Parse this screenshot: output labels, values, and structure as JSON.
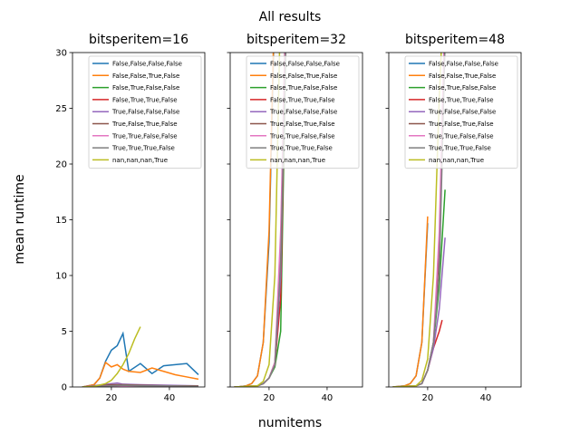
{
  "title": "All results",
  "xlabel": "numitems",
  "ylabel": "mean runtime",
  "chart_data": [
    {
      "type": "line",
      "title": "bitsperitem=16",
      "xlim": [
        6.6,
        52.2
      ],
      "ylim": [
        0,
        30
      ],
      "xticks": [
        20,
        40
      ],
      "yticks": [
        0,
        5,
        10,
        15,
        20,
        25,
        30
      ],
      "legend": "upper right",
      "series": [
        {
          "name": "False,False,False,False",
          "color": "#1f77b4",
          "x": [
            10,
            14,
            16,
            18,
            20,
            22,
            24,
            26,
            30,
            34,
            38,
            42,
            46,
            50
          ],
          "values": [
            0,
            0.2,
            0.8,
            2.3,
            3.3,
            3.7,
            4.8,
            1.4,
            2.1,
            1.2,
            1.9,
            2.0,
            2.1,
            1.1
          ]
        },
        {
          "name": "False,False,True,False",
          "color": "#ff7f0e",
          "x": [
            10,
            14,
            16,
            18,
            20,
            22,
            24,
            26,
            30,
            34,
            38,
            42,
            46,
            50
          ],
          "values": [
            0,
            0.2,
            0.8,
            2.2,
            1.8,
            2.0,
            1.6,
            1.4,
            1.3,
            1.7,
            1.4,
            1.1,
            0.9,
            0.7
          ]
        },
        {
          "name": "False,True,False,False",
          "color": "#2ca02c",
          "x": [
            10,
            20,
            24,
            30,
            40,
            50
          ],
          "values": [
            0,
            0.1,
            0.15,
            0.1,
            0.1,
            0.05
          ]
        },
        {
          "name": "False,True,True,False",
          "color": "#d62728",
          "x": [
            10,
            20,
            24,
            30,
            40,
            50
          ],
          "values": [
            0,
            0.15,
            0.2,
            0.15,
            0.1,
            0.1
          ]
        },
        {
          "name": "True,False,False,False",
          "color": "#9467bd",
          "x": [
            10,
            20,
            22,
            24,
            30,
            40,
            50
          ],
          "values": [
            0,
            0.3,
            0.35,
            0.25,
            0.2,
            0.15,
            0.1
          ]
        },
        {
          "name": "True,False,True,False",
          "color": "#8c564b",
          "x": [
            10,
            20,
            24,
            30,
            40,
            50
          ],
          "values": [
            0,
            0.2,
            0.2,
            0.15,
            0.1,
            0.1
          ]
        },
        {
          "name": "True,True,False,False",
          "color": "#e377c2",
          "x": [
            10,
            20,
            24,
            30,
            40,
            50
          ],
          "values": [
            0,
            0.1,
            0.1,
            0.1,
            0.05,
            0.05
          ]
        },
        {
          "name": "True,True,True,False",
          "color": "#7f7f7f",
          "x": [
            10,
            20,
            24,
            30,
            40,
            50
          ],
          "values": [
            0,
            0.1,
            0.15,
            0.1,
            0.1,
            0.05
          ]
        },
        {
          "name": "nan,nan,nan,True",
          "color": "#bcbd22",
          "x": [
            10,
            14,
            18,
            20,
            22,
            24,
            26,
            28,
            30
          ],
          "values": [
            0,
            0.05,
            0.3,
            0.6,
            1.2,
            2.0,
            3.0,
            4.3,
            5.4
          ]
        }
      ]
    },
    {
      "type": "line",
      "title": "bitsperitem=32",
      "xlim": [
        6.6,
        52.2
      ],
      "ylim": [
        0,
        30
      ],
      "xticks": [
        20,
        40
      ],
      "yticks": [
        0,
        5,
        10,
        15,
        20,
        25,
        30
      ],
      "legend": "upper right",
      "series": [
        {
          "name": "False,False,False,False",
          "color": "#1f77b4",
          "x": [
            8,
            10,
            12,
            14,
            16,
            18,
            20,
            22
          ],
          "values": [
            0,
            0.02,
            0.1,
            0.3,
            1.0,
            4.0,
            13,
            35
          ]
        },
        {
          "name": "False,False,True,False",
          "color": "#ff7f0e",
          "x": [
            8,
            10,
            12,
            14,
            16,
            18,
            20,
            22
          ],
          "values": [
            0,
            0.02,
            0.1,
            0.3,
            1.0,
            4.0,
            14,
            36
          ]
        },
        {
          "name": "False,True,False,False",
          "color": "#2ca02c",
          "x": [
            8,
            12,
            16,
            18,
            20,
            22,
            24,
            26
          ],
          "values": [
            0,
            0.05,
            0.1,
            0.3,
            0.8,
            1.8,
            5,
            34
          ]
        },
        {
          "name": "False,True,True,False",
          "color": "#d62728",
          "x": [
            8,
            12,
            16,
            18,
            20,
            22,
            24,
            26
          ],
          "values": [
            0,
            0.05,
            0.1,
            0.3,
            0.8,
            2,
            8,
            35
          ]
        },
        {
          "name": "True,False,False,False",
          "color": "#9467bd",
          "x": [
            8,
            12,
            16,
            18,
            20,
            22,
            24,
            26
          ],
          "values": [
            0,
            0.05,
            0.1,
            0.3,
            0.8,
            2,
            10,
            36
          ]
        },
        {
          "name": "True,False,True,False",
          "color": "#8c564b",
          "x": [
            8,
            12,
            16,
            18,
            20,
            22,
            24,
            26
          ],
          "values": [
            0,
            0.05,
            0.1,
            0.3,
            0.8,
            2.2,
            12,
            38
          ]
        },
        {
          "name": "True,True,False,False",
          "color": "#e377c2",
          "x": [
            8,
            12,
            16,
            18,
            20,
            22,
            24,
            26
          ],
          "values": [
            0,
            0.05,
            0.1,
            0.3,
            0.8,
            2.2,
            14,
            36
          ]
        },
        {
          "name": "True,True,True,False",
          "color": "#7f7f7f",
          "x": [
            8,
            12,
            16,
            18,
            20,
            22,
            24,
            26
          ],
          "values": [
            0,
            0.05,
            0.1,
            0.3,
            0.8,
            2,
            11,
            33
          ]
        },
        {
          "name": "nan,nan,nan,True",
          "color": "#bcbd22",
          "x": [
            8,
            12,
            16,
            18,
            20,
            22,
            24
          ],
          "values": [
            0,
            0.05,
            0.1,
            0.5,
            2,
            10,
            35
          ]
        }
      ]
    },
    {
      "type": "line",
      "title": "bitsperitem=48",
      "xlim": [
        6.6,
        52.2
      ],
      "ylim": [
        0,
        30
      ],
      "xticks": [
        20,
        40
      ],
      "yticks": [
        0,
        5,
        10,
        15,
        20,
        25,
        30
      ],
      "legend": "upper right",
      "series": [
        {
          "name": "False,False,False,False",
          "color": "#1f77b4",
          "x": [
            8,
            12,
            14,
            16,
            18,
            20
          ],
          "values": [
            0,
            0.1,
            0.3,
            1.0,
            4.0,
            14.7
          ]
        },
        {
          "name": "False,False,True,False",
          "color": "#ff7f0e",
          "x": [
            8,
            12,
            14,
            16,
            18,
            20
          ],
          "values": [
            0,
            0.1,
            0.3,
            1.0,
            4.0,
            15.3
          ]
        },
        {
          "name": "False,True,False,False",
          "color": "#2ca02c",
          "x": [
            8,
            12,
            16,
            18,
            20,
            22,
            24,
            26
          ],
          "values": [
            0,
            0.05,
            0.1,
            0.3,
            1.5,
            4,
            9,
            17.7
          ]
        },
        {
          "name": "False,True,True,False",
          "color": "#d62728",
          "x": [
            8,
            12,
            16,
            18,
            20,
            22,
            24,
            25
          ],
          "values": [
            0,
            0.05,
            0.1,
            0.3,
            1.5,
            3.5,
            5,
            6
          ]
        },
        {
          "name": "True,False,False,False",
          "color": "#9467bd",
          "x": [
            8,
            12,
            16,
            18,
            20,
            22,
            24,
            26
          ],
          "values": [
            0,
            0.05,
            0.1,
            0.3,
            1.5,
            3.5,
            7,
            13.4
          ]
        },
        {
          "name": "True,False,True,False",
          "color": "#8c564b",
          "x": [
            8,
            12,
            16,
            18,
            20,
            22,
            24,
            26
          ],
          "values": [
            0,
            0.05,
            0.1,
            0.3,
            1.5,
            4,
            12,
            32
          ]
        },
        {
          "name": "True,True,False,False",
          "color": "#e377c2",
          "x": [
            8,
            12,
            16,
            18,
            20,
            22,
            24,
            26
          ],
          "values": [
            0,
            0.05,
            0.1,
            0.3,
            1.5,
            4,
            14,
            34
          ]
        },
        {
          "name": "True,True,True,False",
          "color": "#7f7f7f",
          "x": [
            8,
            12,
            16,
            18,
            20,
            22,
            24,
            26
          ],
          "values": [
            0,
            0.05,
            0.1,
            0.3,
            1.5,
            4,
            10,
            31
          ]
        },
        {
          "name": "nan,nan,nan,True",
          "color": "#bcbd22",
          "x": [
            8,
            12,
            16,
            18,
            20,
            22,
            24,
            26
          ],
          "values": [
            0,
            0.05,
            0.1,
            0.6,
            2.5,
            10,
            26,
            38
          ]
        }
      ]
    }
  ]
}
